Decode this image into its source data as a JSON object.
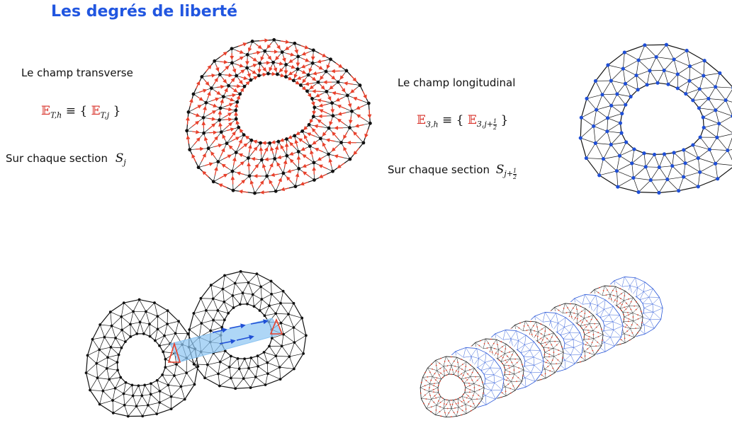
{
  "title": "Les degrés de liberté",
  "transverse": {
    "heading": "Le champ transverse",
    "sym": "𝔼",
    "sub_h": "T,h",
    "equiv": "≡",
    "brace_open": "{",
    "sub_j": "T,j",
    "brace_close": "}",
    "section_label": "Sur chaque section",
    "section_sym": "S",
    "section_sub": "j"
  },
  "longitudinal": {
    "heading": "Le champ longitudinal",
    "sym": "𝔼",
    "sub_h": "3,h",
    "equiv": "≡",
    "brace_open": "{",
    "sub_j": "3,j+",
    "frac_num": "1",
    "frac_den": "2",
    "brace_close": "}",
    "section_label": "Sur chaque section",
    "section_sym": "S",
    "section_sub": "j+",
    "section_frac_num": "1",
    "section_frac_den": "2"
  },
  "colors": {
    "title": "#2156e0",
    "edge_dof": "#e8412c",
    "node_dof": "#1f4fd6",
    "mesh": "#111111",
    "band": "#8cc4f2"
  }
}
